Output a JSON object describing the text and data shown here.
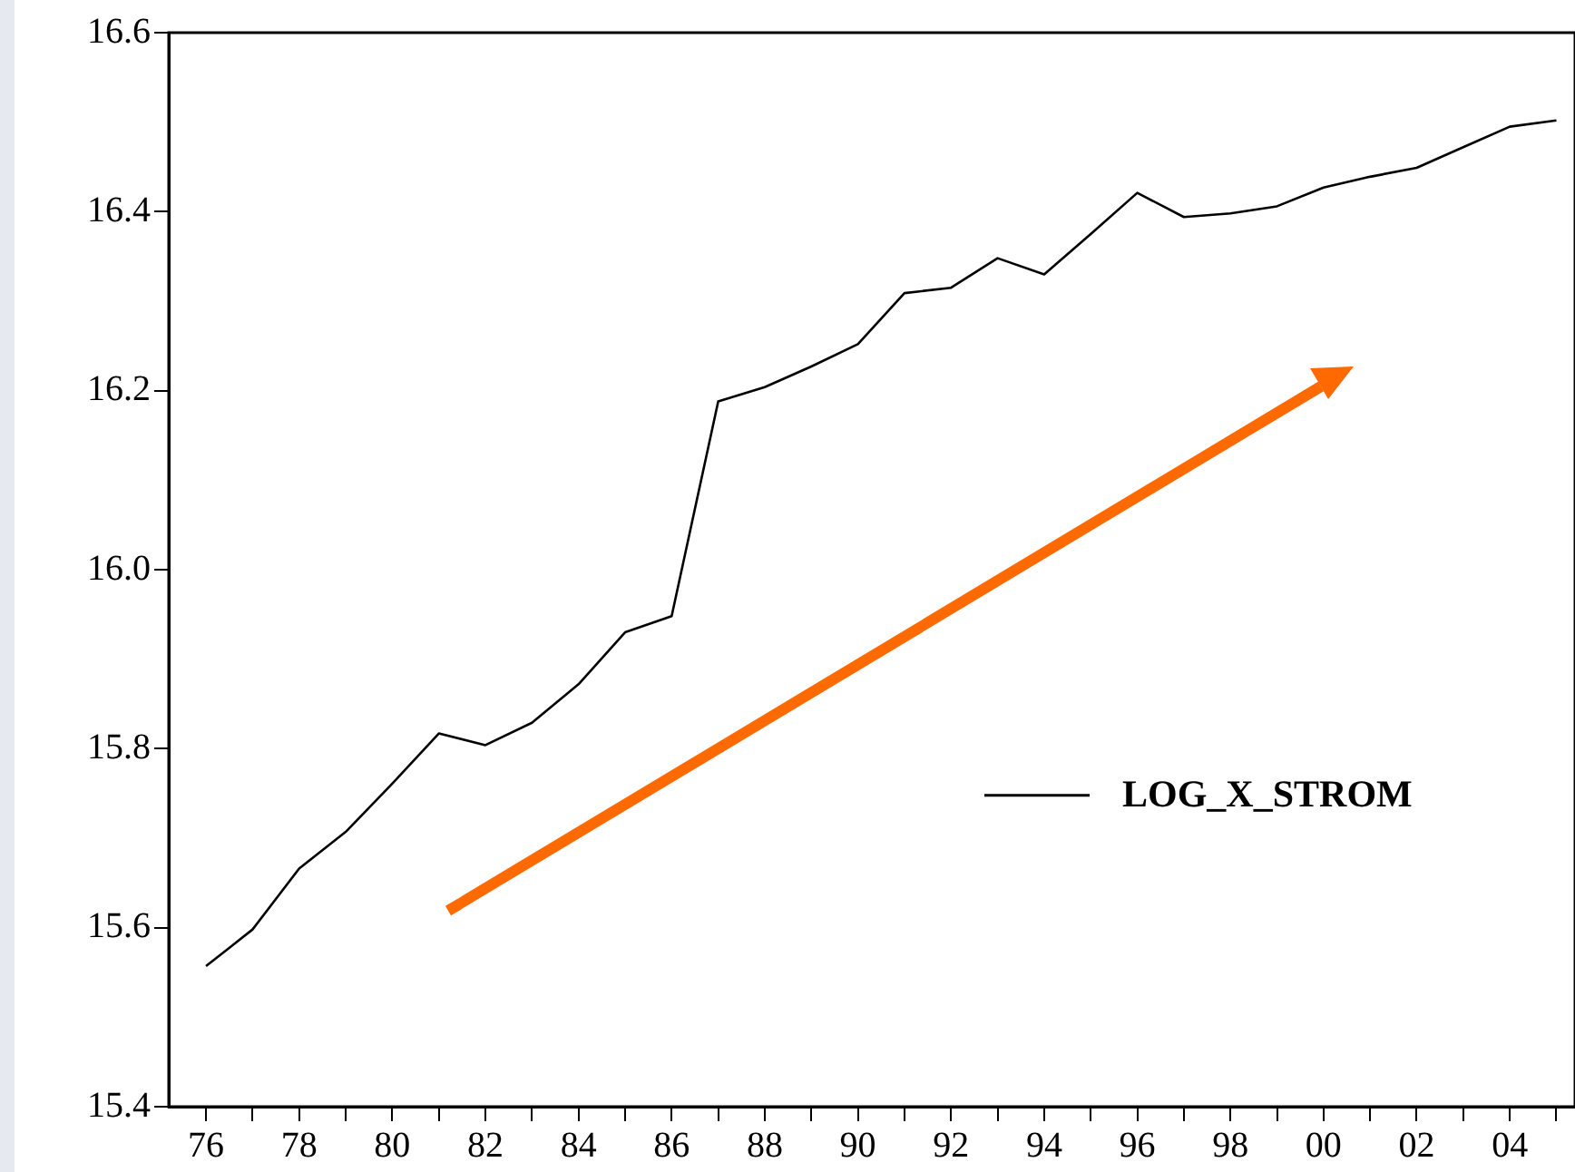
{
  "chart_data": {
    "type": "line",
    "x": [
      1976,
      1977,
      1978,
      1979,
      1980,
      1981,
      1982,
      1983,
      1984,
      1985,
      1986,
      1987,
      1988,
      1989,
      1990,
      1991,
      1992,
      1993,
      1994,
      1995,
      1996,
      1997,
      1998,
      1999,
      2000,
      2001,
      2002,
      2003,
      2004,
      2005
    ],
    "series": [
      {
        "name": "LOG_X_STROM",
        "color": "#000000",
        "values": [
          15.557,
          15.598,
          15.666,
          15.707,
          15.761,
          15.817,
          15.804,
          15.829,
          15.872,
          15.93,
          15.948,
          16.188,
          16.204,
          16.227,
          16.252,
          16.309,
          16.315,
          16.348,
          16.33,
          16.375,
          16.421,
          16.394,
          16.398,
          16.406,
          16.427,
          16.439,
          16.449,
          16.472,
          16.495,
          16.502
        ]
      }
    ],
    "xlim": [
      1975.2,
      2005.4
    ],
    "xticks": [
      {
        "value": 1976,
        "label": "76"
      },
      {
        "value": 1977,
        "label": null
      },
      {
        "value": 1978,
        "label": "78"
      },
      {
        "value": 1979,
        "label": null
      },
      {
        "value": 1980,
        "label": "80"
      },
      {
        "value": 1981,
        "label": null
      },
      {
        "value": 1982,
        "label": "82"
      },
      {
        "value": 1983,
        "label": null
      },
      {
        "value": 1984,
        "label": "84"
      },
      {
        "value": 1985,
        "label": null
      },
      {
        "value": 1986,
        "label": "86"
      },
      {
        "value": 1987,
        "label": null
      },
      {
        "value": 1988,
        "label": "88"
      },
      {
        "value": 1989,
        "label": null
      },
      {
        "value": 1990,
        "label": "90"
      },
      {
        "value": 1991,
        "label": null
      },
      {
        "value": 1992,
        "label": "92"
      },
      {
        "value": 1993,
        "label": null
      },
      {
        "value": 1994,
        "label": "94"
      },
      {
        "value": 1995,
        "label": null
      },
      {
        "value": 1996,
        "label": "96"
      },
      {
        "value": 1997,
        "label": null
      },
      {
        "value": 1998,
        "label": "98"
      },
      {
        "value": 1999,
        "label": null
      },
      {
        "value": 2000,
        "label": "00"
      },
      {
        "value": 2001,
        "label": null
      },
      {
        "value": 2002,
        "label": "02"
      },
      {
        "value": 2003,
        "label": null
      },
      {
        "value": 2004,
        "label": "04"
      },
      {
        "value": 2005,
        "label": null
      }
    ],
    "ylim": [
      15.4,
      16.6
    ],
    "yticks": [
      15.4,
      15.6,
      15.8,
      {
        "value": 16,
        "label": "16.0"
      },
      16.2,
      16.4,
      16.6
    ],
    "grid": false,
    "legend": "right",
    "marker": "none",
    "line_style": "solid"
  }
}
